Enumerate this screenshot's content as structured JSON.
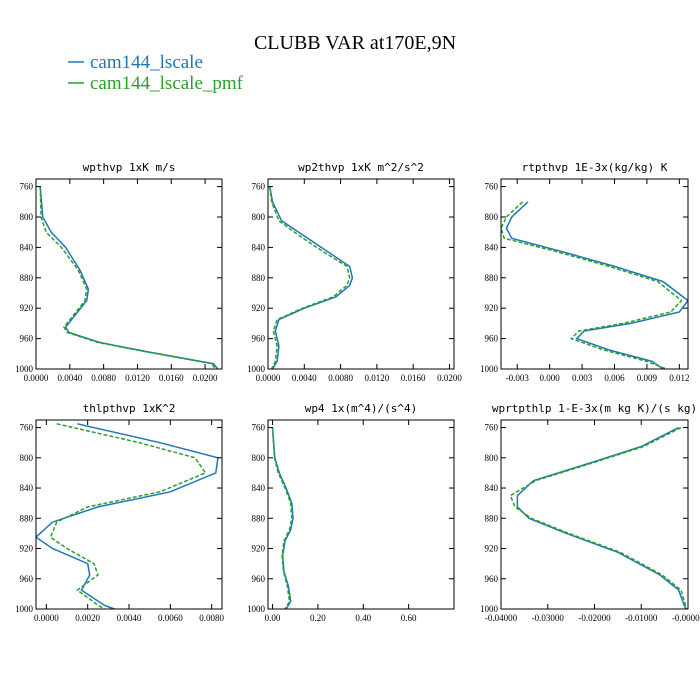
{
  "header": {
    "title": "CLUBB VAR at170E,9N",
    "legend": [
      {
        "label": "cam144_lscale",
        "color": "#1f77b4"
      },
      {
        "label": "cam144_lscale_pmf",
        "color": "#2ca02c"
      }
    ]
  },
  "chart_data": [
    {
      "type": "line",
      "title": "wpthvp  1xK m/s",
      "xlim": [
        0,
        0.022
      ],
      "xticks": [
        "0.0000",
        "0.0040",
        "0.0080",
        "0.0120",
        "0.0160",
        "0.0200"
      ],
      "xtick_values": [
        0,
        0.004,
        0.008,
        0.012,
        0.016,
        0.02
      ],
      "ylim": [
        750,
        1000
      ],
      "yticks": [
        "760",
        "800",
        "840",
        "880",
        "920",
        "960",
        "1000"
      ],
      "series": [
        {
          "name": "cam144_lscale",
          "color": "#1f77b4",
          "dash": false,
          "x": [
            0.0005,
            0.0008,
            0.0018,
            0.0035,
            0.0052,
            0.0062,
            0.006,
            0.0035,
            0.0039,
            0.0075,
            0.013,
            0.021,
            0.0215
          ],
          "y": [
            760,
            800,
            820,
            840,
            870,
            895,
            910,
            945,
            952,
            965,
            977,
            993,
            1000
          ]
        },
        {
          "name": "cam144_lscale_pmf",
          "color": "#2ca02c",
          "dash": true,
          "x": [
            0.0005,
            0.0006,
            0.0012,
            0.003,
            0.005,
            0.006,
            0.0058,
            0.0033,
            0.0037,
            0.0073,
            0.0128,
            0.0208,
            0.0212
          ],
          "y": [
            760,
            800,
            820,
            840,
            870,
            895,
            910,
            945,
            952,
            965,
            977,
            993,
            1000
          ]
        }
      ]
    },
    {
      "type": "line",
      "title": "wp2thvp  1xK m^2/s^2",
      "xlim": [
        0,
        0.0205
      ],
      "xticks": [
        "0.0000",
        "0.0040",
        "0.0080",
        "0.0120",
        "0.0160",
        "0.0200"
      ],
      "xtick_values": [
        0,
        0.004,
        0.008,
        0.012,
        0.016,
        0.02
      ],
      "ylim": [
        750,
        1000
      ],
      "yticks": [
        "760",
        "800",
        "840",
        "880",
        "920",
        "960",
        "1000"
      ],
      "series": [
        {
          "name": "cam144_lscale",
          "color": "#1f77b4",
          "dash": false,
          "x": [
            0.0002,
            0.0005,
            0.0015,
            0.004,
            0.0065,
            0.009,
            0.0093,
            0.009,
            0.0075,
            0.004,
            0.0012,
            0.0008,
            0.0012,
            0.001,
            0.0005
          ],
          "y": [
            760,
            780,
            805,
            825,
            845,
            865,
            880,
            890,
            905,
            920,
            935,
            950,
            970,
            990,
            1000
          ]
        },
        {
          "name": "cam144_lscale_pmf",
          "color": "#2ca02c",
          "dash": true,
          "x": [
            0.0002,
            0.0004,
            0.0012,
            0.0035,
            0.006,
            0.0087,
            0.009,
            0.0087,
            0.0072,
            0.0038,
            0.001,
            0.0006,
            0.001,
            0.0008,
            0.0004
          ],
          "y": [
            760,
            780,
            805,
            825,
            845,
            865,
            880,
            890,
            905,
            920,
            935,
            950,
            970,
            990,
            1000
          ]
        }
      ]
    },
    {
      "type": "line",
      "title": "rtpthvp  1E-3x(kg/kg) K",
      "xlim": [
        -0.0045,
        0.0128
      ],
      "xticks": [
        "-0.003",
        "0.000",
        "0.003",
        "0.006",
        "0.009",
        "0.012"
      ],
      "xtick_values": [
        -0.003,
        0,
        0.003,
        0.006,
        0.009,
        0.012
      ],
      "ylim": [
        750,
        1000
      ],
      "yticks": [
        "760",
        "800",
        "840",
        "880",
        "920",
        "960",
        "1000"
      ],
      "series": [
        {
          "name": "cam144_lscale",
          "color": "#1f77b4",
          "dash": false,
          "x": [
            -0.002,
            -0.0035,
            -0.004,
            -0.0035,
            0.001,
            0.006,
            0.0105,
            0.0128,
            0.012,
            0.0075,
            0.0032,
            0.0025,
            0.0055,
            0.0095,
            0.0105
          ],
          "y": [
            780,
            800,
            815,
            828,
            845,
            865,
            885,
            910,
            925,
            940,
            950,
            960,
            975,
            990,
            1000
          ]
        },
        {
          "name": "cam144_lscale_pmf",
          "color": "#2ca02c",
          "dash": true,
          "x": [
            -0.0025,
            -0.004,
            -0.0045,
            -0.0042,
            0.0005,
            0.0055,
            0.01,
            0.0122,
            0.0112,
            0.0068,
            0.0027,
            0.002,
            0.005,
            0.009,
            0.0108
          ],
          "y": [
            780,
            800,
            815,
            828,
            845,
            865,
            885,
            910,
            925,
            940,
            950,
            960,
            975,
            990,
            1000
          ]
        }
      ]
    },
    {
      "type": "line",
      "title": "thlpthvp  1xK^2",
      "xlim": [
        -0.0005,
        0.0085
      ],
      "xticks": [
        "0.0000",
        "0.0020",
        "0.0040",
        "0.0060",
        "0.0080"
      ],
      "xtick_values": [
        0,
        0.002,
        0.004,
        0.006,
        0.008
      ],
      "ylim": [
        750,
        1000
      ],
      "yticks": [
        "760",
        "800",
        "840",
        "880",
        "920",
        "960",
        "1000"
      ],
      "series": [
        {
          "name": "cam144_lscale",
          "color": "#1f77b4",
          "dash": false,
          "x": [
            0.0015,
            0.0055,
            0.0083,
            0.0082,
            0.006,
            0.0025,
            0.0003,
            -0.0005,
            0.0003,
            0.002,
            0.0021,
            0.0017,
            0.0028,
            0.0033
          ],
          "y": [
            755,
            780,
            800,
            820,
            845,
            865,
            885,
            905,
            920,
            940,
            955,
            975,
            995,
            1000
          ]
        },
        {
          "name": "cam144_lscale_pmf",
          "color": "#2ca02c",
          "dash": true,
          "x": [
            0.0005,
            0.0045,
            0.0072,
            0.0077,
            0.0055,
            0.002,
            0.0005,
            0.0002,
            0.001,
            0.0023,
            0.0025,
            0.0015,
            0.0025,
            0.0028
          ],
          "y": [
            755,
            780,
            800,
            820,
            845,
            865,
            885,
            905,
            920,
            940,
            955,
            975,
            995,
            1000
          ]
        }
      ]
    },
    {
      "type": "line",
      "title": "wp4  1x(m^4)/(s^4)",
      "xlim": [
        -0.02,
        0.8
      ],
      "xticks": [
        "0.00",
        "0.20",
        "0.40",
        "0.60"
      ],
      "xtick_values": [
        0,
        0.2,
        0.4,
        0.6
      ],
      "ylim": [
        750,
        1000
      ],
      "yticks": [
        "760",
        "800",
        "840",
        "880",
        "920",
        "960",
        "1000"
      ],
      "series": [
        {
          "name": "cam144_lscale",
          "color": "#1f77b4",
          "dash": false,
          "x": [
            0.0,
            0.01,
            0.03,
            0.06,
            0.085,
            0.09,
            0.08,
            0.055,
            0.045,
            0.05,
            0.07,
            0.08,
            0.06
          ],
          "y": [
            760,
            800,
            820,
            840,
            860,
            880,
            895,
            910,
            930,
            950,
            970,
            990,
            1000
          ]
        },
        {
          "name": "cam144_lscale_pmf",
          "color": "#2ca02c",
          "dash": true,
          "x": [
            0.0,
            0.008,
            0.025,
            0.055,
            0.08,
            0.085,
            0.075,
            0.05,
            0.042,
            0.048,
            0.065,
            0.075,
            0.055
          ],
          "y": [
            760,
            800,
            820,
            840,
            860,
            880,
            895,
            910,
            930,
            950,
            970,
            990,
            1000
          ]
        }
      ]
    },
    {
      "type": "line",
      "title": "wprtpthlp  1-E-3x(m kg K)/(s kg)",
      "xlim": [
        -0.04,
        0.0
      ],
      "xticks": [
        "-0.04000",
        "-0.03000",
        "-0.02000",
        "-0.01000",
        "-0.00000"
      ],
      "xtick_values": [
        -0.04,
        -0.03,
        -0.02,
        -0.01,
        0
      ],
      "ylim": [
        750,
        1000
      ],
      "yticks": [
        "760",
        "800",
        "840",
        "880",
        "920",
        "960",
        "1000"
      ],
      "series": [
        {
          "name": "cam144_lscale",
          "color": "#1f77b4",
          "dash": false,
          "x": [
            -0.002,
            -0.01,
            -0.02,
            -0.033,
            -0.0365,
            -0.0365,
            -0.034,
            -0.026,
            -0.015,
            -0.006,
            -0.002,
            -0.0005
          ],
          "y": [
            760,
            785,
            805,
            830,
            850,
            865,
            880,
            900,
            925,
            955,
            975,
            1000
          ]
        },
        {
          "name": "cam144_lscale_pmf",
          "color": "#2ca02c",
          "dash": true,
          "x": [
            -0.0015,
            -0.0095,
            -0.0195,
            -0.0325,
            -0.038,
            -0.037,
            -0.0335,
            -0.0255,
            -0.0145,
            -0.0055,
            -0.0015,
            -0.0003
          ],
          "y": [
            760,
            785,
            805,
            830,
            850,
            865,
            880,
            900,
            925,
            955,
            975,
            1000
          ]
        }
      ]
    }
  ]
}
